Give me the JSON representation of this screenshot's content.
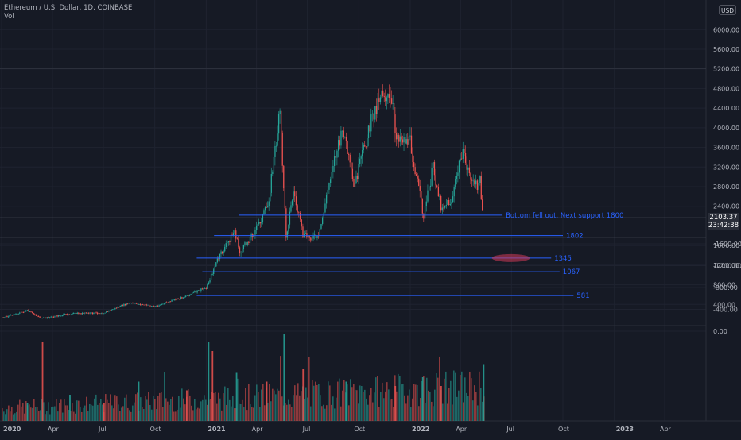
{
  "header": {
    "symbol_title": "Ethereum / U.S. Dollar, 1D, COINBASE",
    "volume_label": "Vol",
    "currency": "USD"
  },
  "last_price": {
    "price": "2103.37",
    "countdown": "23:42:38"
  },
  "chart_data": [
    {
      "type": "line",
      "x_axis": {
        "type": "date",
        "ticks": [
          {
            "label": "2020",
            "date": "2020-01-01"
          },
          {
            "label": "Apr",
            "date": "2020-04-01"
          },
          {
            "label": "Jul",
            "date": "2020-07-01"
          },
          {
            "label": "Oct",
            "date": "2020-10-01"
          },
          {
            "label": "2021",
            "date": "2021-01-01"
          },
          {
            "label": "Apr",
            "date": "2021-04-01"
          },
          {
            "label": "Jul",
            "date": "2021-07-01"
          },
          {
            "label": "Oct",
            "date": "2021-10-01"
          },
          {
            "label": "2022",
            "date": "2022-01-01"
          },
          {
            "label": "Apr",
            "date": "2022-04-01"
          },
          {
            "label": "Jul",
            "date": "2022-07-01"
          },
          {
            "label": "Oct",
            "date": "2022-10-01"
          },
          {
            "label": "2023",
            "date": "2023-01-01"
          },
          {
            "label": "Apr",
            "date": "2023-04-01"
          }
        ]
      },
      "y_axis": {
        "ticks": [
          "6000.00",
          "5600.00",
          "5200.00",
          "4800.00",
          "4400.00",
          "4000.00",
          "3600.00",
          "3200.00",
          "2800.00",
          "2400.00",
          "1600.00",
          "1200.00",
          "800.00",
          "400.00"
        ],
        "range": [
          0,
          6000
        ]
      },
      "series": [
        {
          "price": [
            [
              "2020-01-01",
              130
            ],
            [
              "2020-02-15",
              270
            ],
            [
              "2020-03-13",
              110
            ],
            [
              "2020-05-01",
              210
            ],
            [
              "2020-07-01",
              230
            ],
            [
              "2020-08-15",
              430
            ],
            [
              "2020-10-01",
              360
            ],
            [
              "2020-11-20",
              550
            ],
            [
              "2020-12-31",
              740
            ],
            [
              "2021-01-20",
              1300
            ],
            [
              "2021-02-20",
              1900
            ],
            [
              "2021-03-01",
              1450
            ],
            [
              "2021-03-31",
              1950
            ],
            [
              "2021-04-20",
              2400
            ],
            [
              "2021-05-12",
              4300
            ],
            [
              "2021-05-23",
              1800
            ],
            [
              "2021-06-05",
              2700
            ],
            [
              "2021-06-22",
              1800
            ],
            [
              "2021-07-20",
              1750
            ],
            [
              "2021-08-15",
              3300
            ],
            [
              "2021-09-03",
              3950
            ],
            [
              "2021-09-21",
              2750
            ],
            [
              "2021-10-15",
              3850
            ],
            [
              "2021-11-10",
              4800
            ],
            [
              "2021-11-30",
              4400
            ],
            [
              "2021-12-04",
              3900
            ],
            [
              "2021-12-31",
              3700
            ],
            [
              "2022-01-24",
              2200
            ],
            [
              "2022-02-10",
              3200
            ],
            [
              "2022-02-24",
              2400
            ],
            [
              "2022-03-15",
              2500
            ],
            [
              "2022-04-02",
              3500
            ],
            [
              "2022-04-25",
              2800
            ],
            [
              "2022-05-05",
              2900
            ],
            [
              "2022-05-11",
              2100
            ]
          ]
        }
      ],
      "horizontal_lines": [
        {
          "label": "Bottom fell out.  Next support 1800",
          "level": 2220,
          "from": "2021-03-01",
          "to": "2022-06-15"
        },
        {
          "label": "1802",
          "level": 1802,
          "from": "2021-01-15",
          "to": "2022-10-01"
        },
        {
          "label": "1345",
          "level": 1345,
          "from": "2020-12-15",
          "to": "2022-09-10"
        },
        {
          "label": "1067",
          "level": 1067,
          "from": "2020-12-25",
          "to": "2022-09-25"
        },
        {
          "label": "581",
          "level": 581,
          "from": "2020-12-15",
          "to": "2022-10-20"
        }
      ],
      "highlight": {
        "level": 1345,
        "date": "2022-04-20",
        "color": "#d33b57"
      },
      "line_color": "#2962ff",
      "up_color": "#26a69a",
      "down_color": "#ef5350"
    },
    {
      "type": "bar",
      "title": "Vol",
      "y_axis": {
        "ticks": [
          "0.00",
          "-400.00",
          "-800.00",
          "-1200.00",
          "-1600.00"
        ],
        "range": [
          -1700,
          0
        ]
      },
      "bars": [
        [
          "2020-02-15",
          20
        ],
        [
          "2020-03-13",
          90
        ],
        [
          "2020-05-01",
          30
        ],
        [
          "2020-07-01",
          20
        ],
        [
          "2020-09-01",
          45
        ],
        [
          "2020-11-26",
          35
        ],
        [
          "2021-01-04",
          90
        ],
        [
          "2021-01-11",
          80
        ],
        [
          "2021-02-23",
          55
        ],
        [
          "2021-04-18",
          45
        ],
        [
          "2021-05-19",
          100
        ],
        [
          "2021-06-22",
          60
        ],
        [
          "2021-09-07",
          45
        ],
        [
          "2021-12-04",
          40
        ],
        [
          "2022-01-22",
          50
        ],
        [
          "2022-02-24",
          40
        ],
        [
          "2022-05-11",
          65
        ]
      ]
    }
  ]
}
